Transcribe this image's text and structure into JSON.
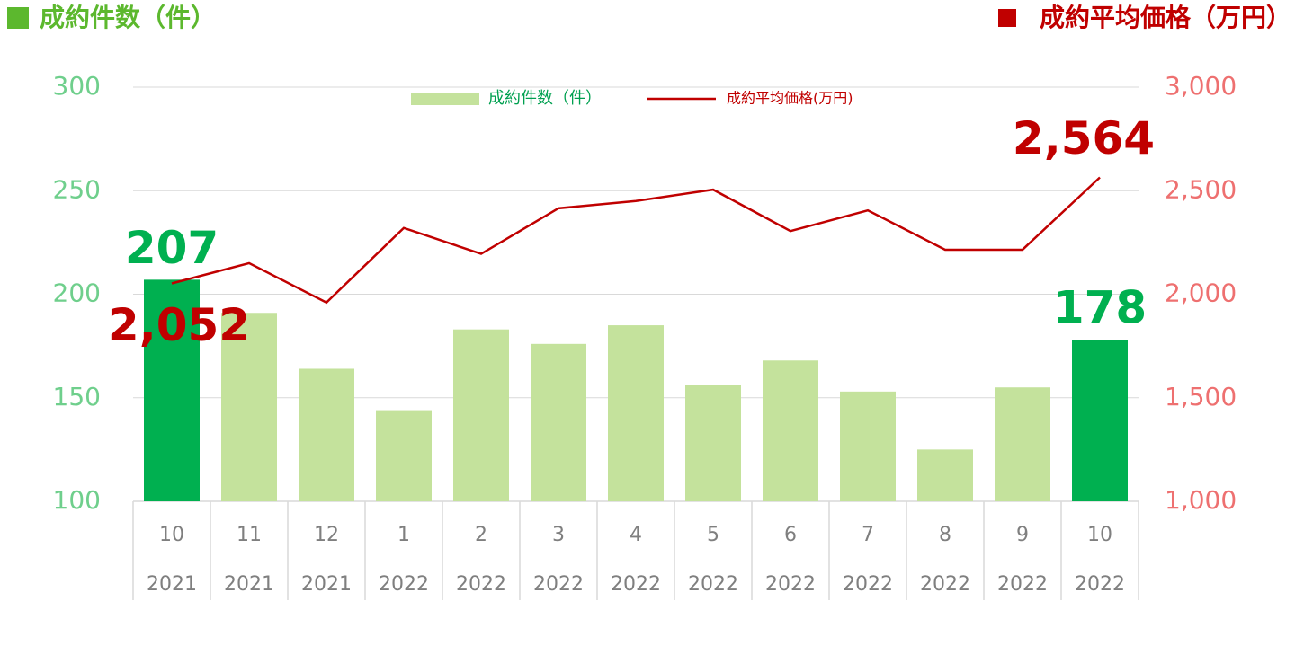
{
  "chart_data": {
    "type": "bar-line",
    "header_left": "成約件数（件）",
    "header_right": "成約平均価格（万円）",
    "categories": [
      "10",
      "11",
      "12",
      "1",
      "2",
      "3",
      "4",
      "5",
      "6",
      "7",
      "8",
      "9",
      "10"
    ],
    "category_years": [
      "2021",
      "2021",
      "2021",
      "2022",
      "2022",
      "2022",
      "2022",
      "2022",
      "2022",
      "2022",
      "2022",
      "2022",
      "2022"
    ],
    "series": [
      {
        "name": "成約件数（件）",
        "type": "bar",
        "color": "#c4e29c",
        "colors": [
          "#00b050",
          "#c4e29c",
          "#c4e29c",
          "#c4e29c",
          "#c4e29c",
          "#c4e29c",
          "#c4e29c",
          "#c4e29c",
          "#c4e29c",
          "#c4e29c",
          "#c4e29c",
          "#c4e29c",
          "#00b050"
        ],
        "values": [
          207,
          191,
          164,
          144,
          183,
          176,
          185,
          156,
          168,
          153,
          125,
          155,
          178
        ],
        "value_labels": [
          "207",
          null,
          null,
          null,
          null,
          null,
          null,
          null,
          null,
          null,
          null,
          null,
          "178"
        ],
        "label_color": "#00b050"
      },
      {
        "name": "成約平均価格(万円)",
        "type": "line",
        "axis": "y2",
        "color": "#c00000",
        "values": [
          2052,
          2150,
          1960,
          2320,
          2195,
          2415,
          2450,
          2505,
          2305,
          2405,
          2215,
          2215,
          2564
        ],
        "value_labels": [
          "2,052",
          null,
          null,
          null,
          null,
          null,
          null,
          null,
          null,
          null,
          null,
          null,
          "2,564"
        ],
        "label_color": "#c00000"
      }
    ],
    "ylim": [
      100,
      300
    ],
    "yticks": [
      100,
      150,
      200,
      250,
      300
    ],
    "y2lim": [
      1000,
      3000
    ],
    "y2ticks": [
      {
        "value": 1000,
        "label": "1,000"
      },
      {
        "value": 1500,
        "label": "1,500"
      },
      {
        "value": 2000,
        "label": "2,000"
      },
      {
        "value": 2500,
        "label": "2,500"
      },
      {
        "value": 3000,
        "label": "3,000"
      }
    ],
    "grid": true
  }
}
